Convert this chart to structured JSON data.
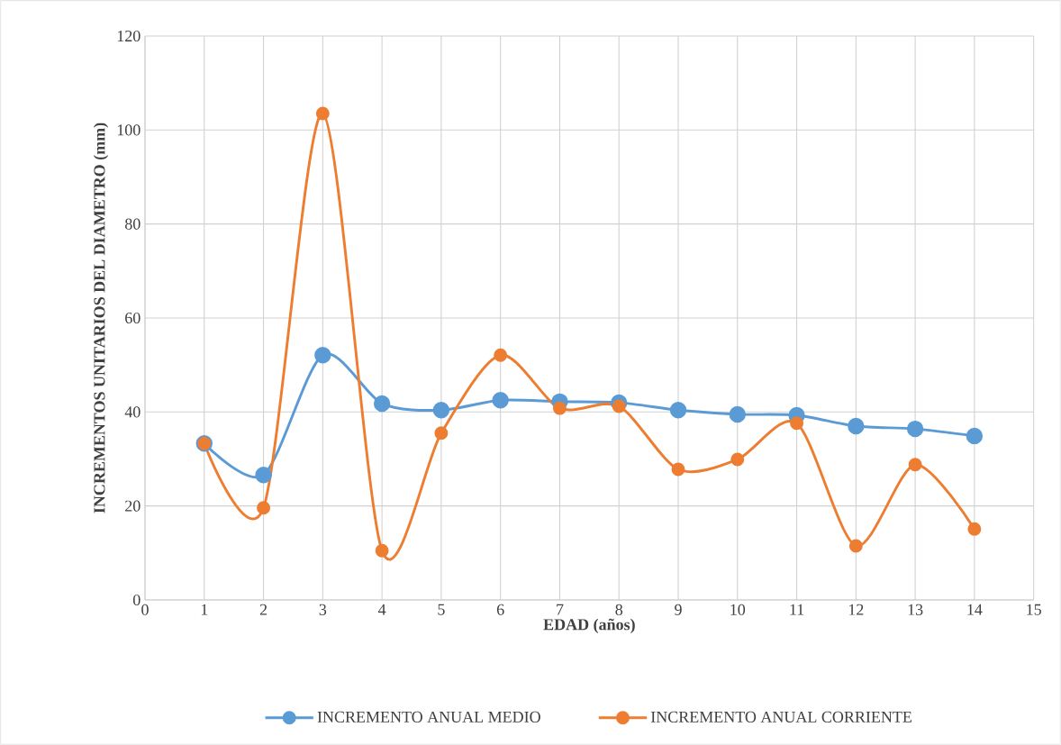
{
  "chart_data": {
    "type": "line",
    "xlabel": "EDAD (años)",
    "ylabel": "INCREMENTOS UNITARIOS DEL DIAMETRO (mm)",
    "x": [
      1,
      2,
      3,
      4,
      5,
      6,
      7,
      8,
      9,
      10,
      11,
      12,
      13,
      14
    ],
    "series": [
      {
        "name": "INCREMENTO ANUAL MEDIO",
        "color": "#5b9bd5",
        "values": [
          33.3,
          26.6,
          52.1,
          41.8,
          40.4,
          42.5,
          42.2,
          42.0,
          40.4,
          39.5,
          39.3,
          37.0,
          36.4,
          34.9
        ]
      },
      {
        "name": "INCREMENTO ANUAL CORRIENTE",
        "color": "#ed7d31",
        "values": [
          33.3,
          19.6,
          103.5,
          10.5,
          35.5,
          52.1,
          40.8,
          41.2,
          27.8,
          29.9,
          37.6,
          11.5,
          28.8,
          15.1
        ]
      }
    ],
    "xlim": [
      0,
      15
    ],
    "xticks": [
      0,
      1,
      2,
      3,
      4,
      5,
      6,
      7,
      8,
      9,
      10,
      11,
      12,
      13,
      14,
      15
    ],
    "ylim": [
      0,
      120
    ],
    "yticks": [
      0,
      20,
      40,
      60,
      80,
      100,
      120
    ],
    "grid": true,
    "legend": "bottom",
    "marker": "circle"
  }
}
